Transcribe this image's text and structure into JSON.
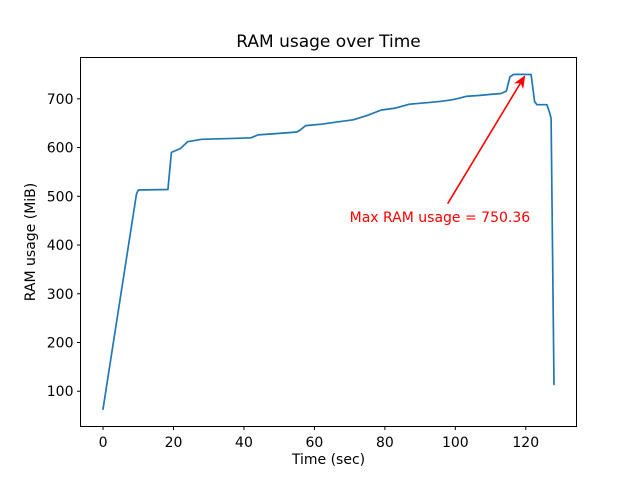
{
  "figure": {
    "background": "#ffffff",
    "frame_color": "#000000"
  },
  "chart_data": {
    "type": "line",
    "title": "RAM usage over Time",
    "xlabel": "Time (sec)",
    "ylabel": "RAM usage (MiB)",
    "xlim": [
      -6.4,
      134.4
    ],
    "ylim": [
      27.6,
      784.8
    ],
    "xticks": [
      0,
      20,
      40,
      60,
      80,
      100,
      120
    ],
    "yticks": [
      100,
      200,
      300,
      400,
      500,
      600,
      700
    ],
    "grid": false,
    "legend": null,
    "series": [
      {
        "name": "RAM usage",
        "color": "#1f77b4",
        "points": [
          [
            0,
            63
          ],
          [
            9.5,
            505
          ],
          [
            10,
            513
          ],
          [
            18.4,
            514
          ],
          [
            19.4,
            590
          ],
          [
            22,
            598
          ],
          [
            24,
            612
          ],
          [
            28,
            617
          ],
          [
            38,
            619
          ],
          [
            42,
            620
          ],
          [
            44,
            626
          ],
          [
            50,
            629
          ],
          [
            55,
            632
          ],
          [
            56,
            636
          ],
          [
            57.5,
            645
          ],
          [
            62,
            648
          ],
          [
            67,
            653
          ],
          [
            71,
            657
          ],
          [
            75,
            666
          ],
          [
            79,
            677
          ],
          [
            83,
            681
          ],
          [
            87,
            689
          ],
          [
            92,
            692
          ],
          [
            96,
            695
          ],
          [
            99,
            698
          ],
          [
            101,
            701
          ],
          [
            103,
            705
          ],
          [
            107,
            707
          ],
          [
            110,
            709
          ],
          [
            113,
            711
          ],
          [
            114.5,
            716
          ],
          [
            115.5,
            745
          ],
          [
            116.5,
            750
          ],
          [
            117.5,
            750.36
          ],
          [
            121.5,
            750
          ],
          [
            122.5,
            694
          ],
          [
            123.2,
            688
          ],
          [
            126,
            688
          ],
          [
            126.8,
            671
          ],
          [
            127.2,
            660
          ],
          [
            128,
            114
          ]
        ]
      }
    ],
    "annotation": {
      "text": "Max RAM usage = 750.36",
      "color": "#ff0000",
      "xy": [
        120,
        750.36
      ],
      "xytext": [
        70,
        450
      ]
    },
    "max_ram_usage": 750.36
  }
}
